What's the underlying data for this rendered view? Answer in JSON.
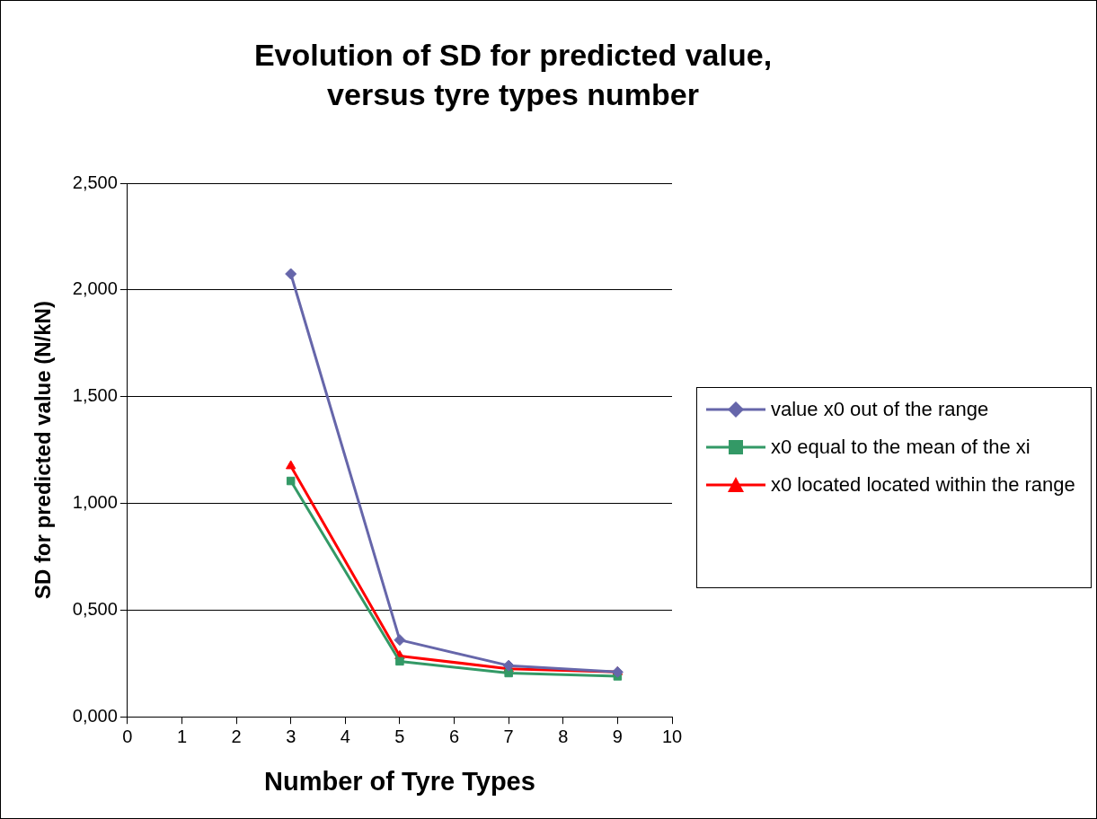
{
  "chart_data": {
    "type": "line",
    "title": "Evolution of SD for predicted value, versus tyre types number",
    "xlabel": "Number of Tyre Types",
    "ylabel": "SD for predicted value (N/kN)",
    "x": [
      3,
      5,
      7,
      9
    ],
    "series": [
      {
        "name": "value x0 out of the range",
        "color": "#6666aa",
        "marker": "diamond",
        "values": [
          2.075,
          0.36,
          0.24,
          0.21
        ]
      },
      {
        "name": "x0 equal to the mean of the xi",
        "color": "#339966",
        "marker": "square",
        "values": [
          1.105,
          0.26,
          0.205,
          0.19
        ]
      },
      {
        "name": "x0 located located within the range",
        "color": "#ff0000",
        "marker": "triangle",
        "values": [
          1.175,
          0.285,
          0.225,
          0.21
        ]
      }
    ],
    "xlim": [
      0,
      10
    ],
    "xticks": [
      0,
      1,
      2,
      3,
      4,
      5,
      6,
      7,
      8,
      9,
      10
    ],
    "ylim": [
      0,
      2.5
    ],
    "yticks": [
      {
        "value": 0,
        "label": "0,000"
      },
      {
        "value": 0.5,
        "label": "0,500"
      },
      {
        "value": 1,
        "label": "1,000"
      },
      {
        "value": 1.5,
        "label": "1,500"
      },
      {
        "value": 2,
        "label": "2,000"
      },
      {
        "value": 2.5,
        "label": "2,500"
      }
    ],
    "grid": "y",
    "legend": "right",
    "line_style": "solid"
  }
}
